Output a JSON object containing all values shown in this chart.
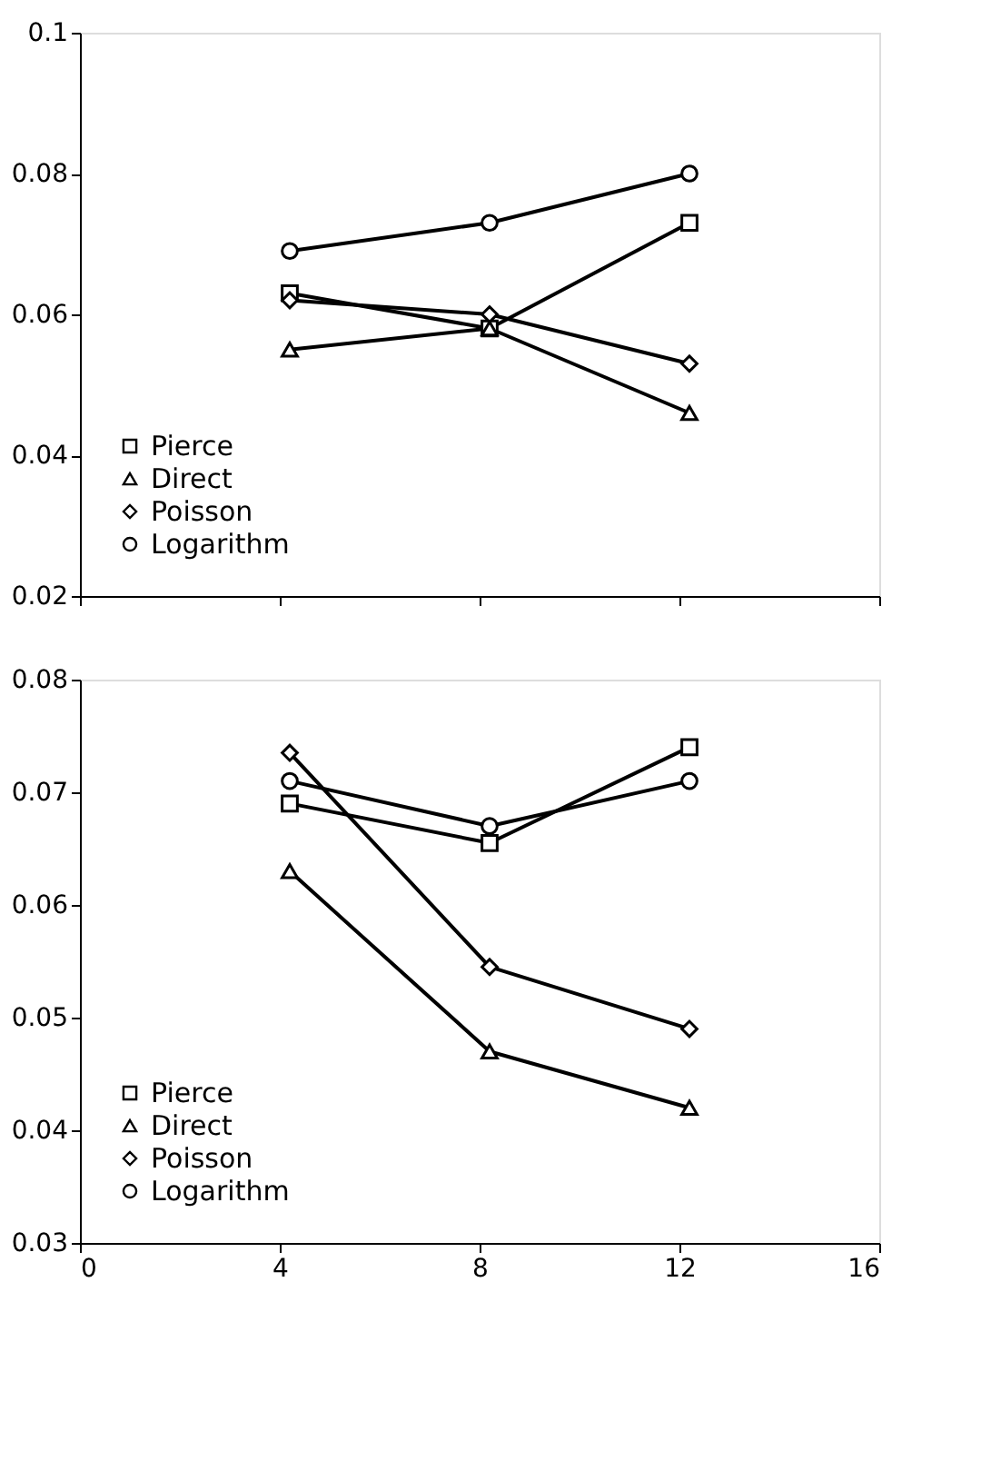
{
  "chart_data": [
    {
      "type": "line",
      "x": [
        4.2,
        8.2,
        12.2
      ],
      "xlim": [
        0,
        16
      ],
      "xticks": [
        0,
        4,
        8,
        12,
        16
      ],
      "ylim": [
        0.02,
        0.1
      ],
      "yticks": [
        0.02,
        0.04,
        0.06,
        0.08,
        0.1
      ],
      "tick_labels": "y",
      "grid": false,
      "legend": "bottom left",
      "line_style": "solid",
      "series": [
        {
          "name": "Pierce",
          "color": "#000000",
          "marker": "square",
          "values": [
            0.063,
            0.058,
            0.073
          ]
        },
        {
          "name": "Direct",
          "color": "#000000",
          "marker": "triangle",
          "values": [
            0.055,
            0.058,
            0.046
          ]
        },
        {
          "name": "Poisson",
          "color": "#000000",
          "marker": "diamond",
          "values": [
            0.062,
            0.06,
            0.053
          ]
        },
        {
          "name": "Logarithm",
          "color": "#000000",
          "marker": "circle",
          "values": [
            0.069,
            0.073,
            0.08
          ]
        }
      ]
    },
    {
      "type": "line",
      "x": [
        4.2,
        8.2,
        12.2
      ],
      "xlim": [
        0,
        16
      ],
      "xticks": [
        0,
        4,
        8,
        12,
        16
      ],
      "ylim": [
        0.03,
        0.08
      ],
      "yticks": [
        0.03,
        0.04,
        0.05,
        0.06,
        0.07,
        0.08
      ],
      "grid": false,
      "legend": "bottom left",
      "line_style": "solid",
      "series": [
        {
          "name": "Pierce",
          "color": "#000000",
          "marker": "square",
          "values": [
            0.069,
            0.0655,
            0.074
          ]
        },
        {
          "name": "Direct",
          "color": "#000000",
          "marker": "triangle",
          "values": [
            0.063,
            0.047,
            0.042
          ]
        },
        {
          "name": "Poisson",
          "color": "#000000",
          "marker": "diamond",
          "values": [
            0.0735,
            0.0545,
            0.049
          ]
        },
        {
          "name": "Logarithm",
          "color": "#000000",
          "marker": "circle",
          "values": [
            0.071,
            0.067,
            0.071
          ]
        }
      ]
    }
  ]
}
